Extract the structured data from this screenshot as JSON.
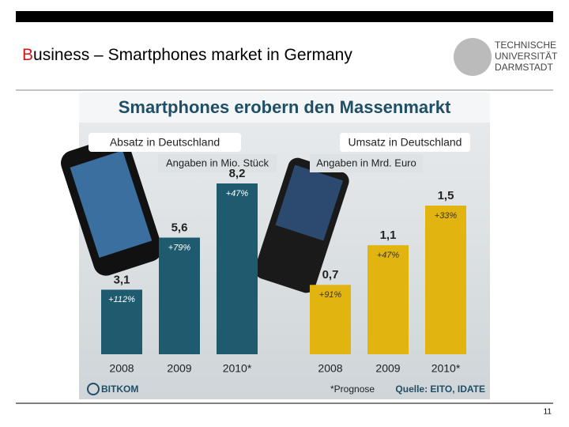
{
  "slide": {
    "title": "Business – Smartphones market in Germany",
    "logo": [
      "TECHNISCHE",
      "UNIVERSITÄT",
      "DARMSTADT"
    ],
    "page": "11"
  },
  "infographic": {
    "headline": "Smartphones erobern den Massenmarkt",
    "brand": "BITKOM",
    "footnote": "*Prognose",
    "source": "Quelle: EITO, IDATE"
  },
  "chart_data": [
    {
      "type": "bar",
      "title": "Absatz in Deutschland",
      "subtitle": "Angaben in Mio. Stück",
      "categories": [
        "2008",
        "2009",
        "2010*"
      ],
      "values": [
        3.1,
        5.6,
        8.2
      ],
      "value_labels": [
        "3,1",
        "5,6",
        "8,2"
      ],
      "growth_labels": [
        "+112%",
        "+79%",
        "+47%"
      ],
      "color": "#1f5b6f"
    },
    {
      "type": "bar",
      "title": "Umsatz in Deutschland",
      "subtitle": "Angaben in Mrd. Euro",
      "categories": [
        "2008",
        "2009",
        "2010*"
      ],
      "values": [
        0.7,
        1.1,
        1.5
      ],
      "value_labels": [
        "0,7",
        "1,1",
        "1,5"
      ],
      "growth_labels": [
        "+91%",
        "+47%",
        "+33%"
      ],
      "color": "#e2b40f"
    }
  ]
}
